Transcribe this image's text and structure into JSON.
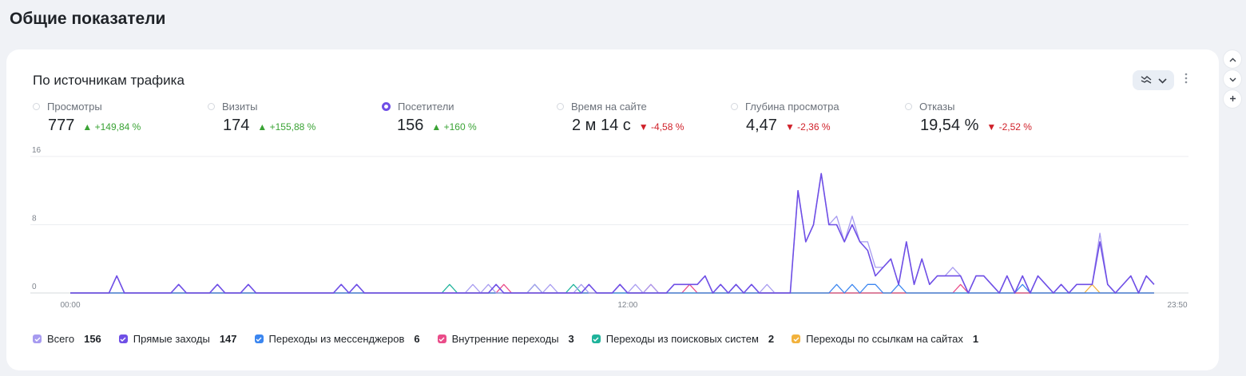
{
  "page": {
    "title": "Общие показатели"
  },
  "card": {
    "title": "По источникам трафика"
  },
  "metrics": [
    {
      "label": "Просмотры",
      "value": "777",
      "delta": "+149,84 %",
      "direction": "up",
      "selected": false
    },
    {
      "label": "Визиты",
      "value": "174",
      "delta": "+155,88 %",
      "direction": "up",
      "selected": false
    },
    {
      "label": "Посетители",
      "value": "156",
      "delta": "+160 %",
      "direction": "up",
      "selected": true
    },
    {
      "label": "Время на сайте",
      "value": "2 м 14 с",
      "delta": "-4,58 %",
      "direction": "down",
      "selected": false
    },
    {
      "label": "Глубина просмотра",
      "value": "4,47",
      "delta": "-2,36 %",
      "direction": "down",
      "selected": false
    },
    {
      "label": "Отказы",
      "value": "19,54 %",
      "delta": "-2,52 %",
      "direction": "down",
      "selected": false
    }
  ],
  "icons": {
    "chart_type": "line-chart-icon",
    "dropdown": "chevron-down-icon",
    "more": "more-vertical-icon",
    "collapse": "chevron-up-icon",
    "expand": "chevron-down-icon",
    "add": "plus-icon"
  },
  "chart_data": {
    "type": "line",
    "y_ticks": [
      "16",
      "8",
      "0"
    ],
    "ylim": [
      0,
      16
    ],
    "x_ticks": [
      "00:00",
      "12:00",
      "23:50"
    ],
    "x_unit": "10-minute intervals (00:00 = 0, 23:50 = 143)",
    "series": [
      {
        "name": "Всего",
        "color": "#a79bf0",
        "points": [
          [
            0,
            0
          ],
          [
            5,
            0
          ],
          [
            6,
            2
          ],
          [
            7,
            0
          ],
          [
            13,
            0
          ],
          [
            14,
            1
          ],
          [
            15,
            0
          ],
          [
            18,
            0
          ],
          [
            19,
            1
          ],
          [
            20,
            0
          ],
          [
            22,
            0
          ],
          [
            23,
            1
          ],
          [
            24,
            0
          ],
          [
            34,
            0
          ],
          [
            35,
            1
          ],
          [
            36,
            0
          ],
          [
            37,
            1
          ],
          [
            38,
            0
          ],
          [
            51,
            0
          ],
          [
            52,
            1
          ],
          [
            53,
            0
          ],
          [
            54,
            1
          ],
          [
            55,
            0
          ],
          [
            59,
            0
          ],
          [
            60,
            1
          ],
          [
            61,
            0
          ],
          [
            62,
            1
          ],
          [
            63,
            0
          ],
          [
            65,
            0
          ],
          [
            66,
            1
          ],
          [
            67,
            0
          ],
          [
            70,
            0
          ],
          [
            71,
            1
          ],
          [
            72,
            0
          ],
          [
            73,
            1
          ],
          [
            74,
            0
          ],
          [
            75,
            1
          ],
          [
            76,
            0
          ],
          [
            77,
            0
          ],
          [
            78,
            1
          ],
          [
            79,
            1
          ],
          [
            80,
            1
          ],
          [
            81,
            1
          ],
          [
            82,
            2
          ],
          [
            83,
            0
          ],
          [
            84,
            1
          ],
          [
            85,
            0
          ],
          [
            86,
            1
          ],
          [
            87,
            0
          ],
          [
            88,
            1
          ],
          [
            89,
            0
          ],
          [
            90,
            1
          ],
          [
            91,
            0
          ],
          [
            93,
            0
          ],
          [
            94,
            12
          ],
          [
            95,
            6
          ],
          [
            96,
            8
          ],
          [
            97,
            14
          ],
          [
            98,
            8
          ],
          [
            99,
            9
          ],
          [
            100,
            6
          ],
          [
            101,
            9
          ],
          [
            102,
            6
          ],
          [
            103,
            6
          ],
          [
            104,
            3
          ],
          [
            105,
            3
          ],
          [
            106,
            4
          ],
          [
            107,
            1
          ],
          [
            108,
            6
          ],
          [
            109,
            1
          ],
          [
            110,
            4
          ],
          [
            111,
            1
          ],
          [
            112,
            2
          ],
          [
            113,
            2
          ],
          [
            114,
            3
          ],
          [
            115,
            2
          ],
          [
            116,
            0
          ],
          [
            117,
            2
          ],
          [
            118,
            2
          ],
          [
            119,
            1
          ],
          [
            120,
            0
          ],
          [
            121,
            2
          ],
          [
            122,
            0
          ],
          [
            123,
            2
          ],
          [
            124,
            0
          ],
          [
            125,
            2
          ],
          [
            126,
            1
          ],
          [
            127,
            0
          ],
          [
            128,
            1
          ],
          [
            129,
            0
          ],
          [
            130,
            1
          ],
          [
            131,
            1
          ],
          [
            132,
            1
          ],
          [
            133,
            7
          ],
          [
            134,
            1
          ],
          [
            135,
            0
          ],
          [
            137,
            2
          ],
          [
            138,
            0
          ],
          [
            139,
            2
          ],
          [
            140,
            1
          ]
        ]
      },
      {
        "name": "Прямые заходы",
        "color": "#6f4fe6",
        "points": [
          [
            0,
            0
          ],
          [
            5,
            0
          ],
          [
            6,
            2
          ],
          [
            7,
            0
          ],
          [
            13,
            0
          ],
          [
            14,
            1
          ],
          [
            15,
            0
          ],
          [
            18,
            0
          ],
          [
            19,
            1
          ],
          [
            20,
            0
          ],
          [
            22,
            0
          ],
          [
            23,
            1
          ],
          [
            24,
            0
          ],
          [
            34,
            0
          ],
          [
            35,
            1
          ],
          [
            36,
            0
          ],
          [
            37,
            1
          ],
          [
            38,
            0
          ],
          [
            54,
            0
          ],
          [
            55,
            1
          ],
          [
            56,
            0
          ],
          [
            66,
            0
          ],
          [
            67,
            1
          ],
          [
            68,
            0
          ],
          [
            70,
            0
          ],
          [
            71,
            1
          ],
          [
            72,
            0
          ],
          [
            77,
            0
          ],
          [
            78,
            1
          ],
          [
            79,
            1
          ],
          [
            80,
            1
          ],
          [
            81,
            1
          ],
          [
            82,
            2
          ],
          [
            83,
            0
          ],
          [
            84,
            1
          ],
          [
            85,
            0
          ],
          [
            86,
            1
          ],
          [
            87,
            0
          ],
          [
            88,
            1
          ],
          [
            89,
            0
          ],
          [
            93,
            0
          ],
          [
            94,
            12
          ],
          [
            95,
            6
          ],
          [
            96,
            8
          ],
          [
            97,
            14
          ],
          [
            98,
            8
          ],
          [
            99,
            8
          ],
          [
            100,
            6
          ],
          [
            101,
            8
          ],
          [
            102,
            6
          ],
          [
            103,
            5
          ],
          [
            104,
            2
          ],
          [
            105,
            3
          ],
          [
            106,
            4
          ],
          [
            107,
            1
          ],
          [
            108,
            6
          ],
          [
            109,
            1
          ],
          [
            110,
            4
          ],
          [
            111,
            1
          ],
          [
            112,
            2
          ],
          [
            113,
            2
          ],
          [
            114,
            2
          ],
          [
            115,
            2
          ],
          [
            116,
            0
          ],
          [
            117,
            2
          ],
          [
            118,
            2
          ],
          [
            119,
            1
          ],
          [
            120,
            0
          ],
          [
            121,
            2
          ],
          [
            122,
            0
          ],
          [
            123,
            2
          ],
          [
            124,
            0
          ],
          [
            125,
            2
          ],
          [
            126,
            1
          ],
          [
            127,
            0
          ],
          [
            128,
            1
          ],
          [
            129,
            0
          ],
          [
            130,
            1
          ],
          [
            131,
            1
          ],
          [
            132,
            1
          ],
          [
            133,
            6
          ],
          [
            134,
            1
          ],
          [
            135,
            0
          ],
          [
            137,
            2
          ],
          [
            138,
            0
          ],
          [
            139,
            2
          ],
          [
            140,
            1
          ]
        ]
      },
      {
        "name": "Переходы из мессенджеров",
        "color": "#3b86f0",
        "points": [
          [
            0,
            0
          ],
          [
            98,
            0
          ],
          [
            99,
            1
          ],
          [
            100,
            0
          ],
          [
            101,
            1
          ],
          [
            102,
            0
          ],
          [
            103,
            1
          ],
          [
            104,
            1
          ],
          [
            105,
            0
          ],
          [
            106,
            0
          ],
          [
            107,
            1
          ],
          [
            108,
            0
          ],
          [
            122,
            0
          ],
          [
            123,
            1
          ],
          [
            124,
            0
          ],
          [
            140,
            0
          ]
        ]
      },
      {
        "name": "Внутренние переходы",
        "color": "#ea4c89",
        "points": [
          [
            0,
            0
          ],
          [
            55,
            0
          ],
          [
            56,
            1
          ],
          [
            57,
            0
          ],
          [
            70,
            0
          ],
          [
            71,
            1
          ],
          [
            72,
            0
          ],
          [
            74,
            0
          ],
          [
            75,
            1
          ],
          [
            76,
            0
          ],
          [
            79,
            0
          ],
          [
            80,
            1
          ],
          [
            81,
            0
          ],
          [
            114,
            0
          ],
          [
            115,
            1
          ],
          [
            116,
            0
          ],
          [
            140,
            0
          ]
        ]
      },
      {
        "name": "Переходы из поисковых систем",
        "color": "#1fb39b",
        "points": [
          [
            0,
            0
          ],
          [
            48,
            0
          ],
          [
            49,
            1
          ],
          [
            50,
            0
          ],
          [
            59,
            0
          ],
          [
            60,
            1
          ],
          [
            61,
            0
          ],
          [
            64,
            0
          ],
          [
            65,
            1
          ],
          [
            66,
            0
          ],
          [
            85,
            0
          ],
          [
            86,
            1
          ],
          [
            87,
            0
          ],
          [
            140,
            0
          ]
        ]
      },
      {
        "name": "Переходы по ссылкам на сайтах",
        "color": "#f2b23d",
        "points": [
          [
            0,
            0
          ],
          [
            131,
            0
          ],
          [
            132,
            1
          ],
          [
            133,
            0
          ],
          [
            140,
            0
          ]
        ]
      }
    ],
    "legend": [
      {
        "label": "Всего",
        "count": "156",
        "color": "#a79bf0"
      },
      {
        "label": "Прямые заходы",
        "count": "147",
        "color": "#6f4fe6"
      },
      {
        "label": "Переходы из мессенджеров",
        "count": "6",
        "color": "#3b86f0"
      },
      {
        "label": "Внутренние переходы",
        "count": "3",
        "color": "#ea4c89"
      },
      {
        "label": "Переходы из поисковых систем",
        "count": "2",
        "color": "#1fb39b"
      },
      {
        "label": "Переходы по ссылкам на сайтах",
        "count": "1",
        "color": "#f2b23d"
      }
    ]
  }
}
